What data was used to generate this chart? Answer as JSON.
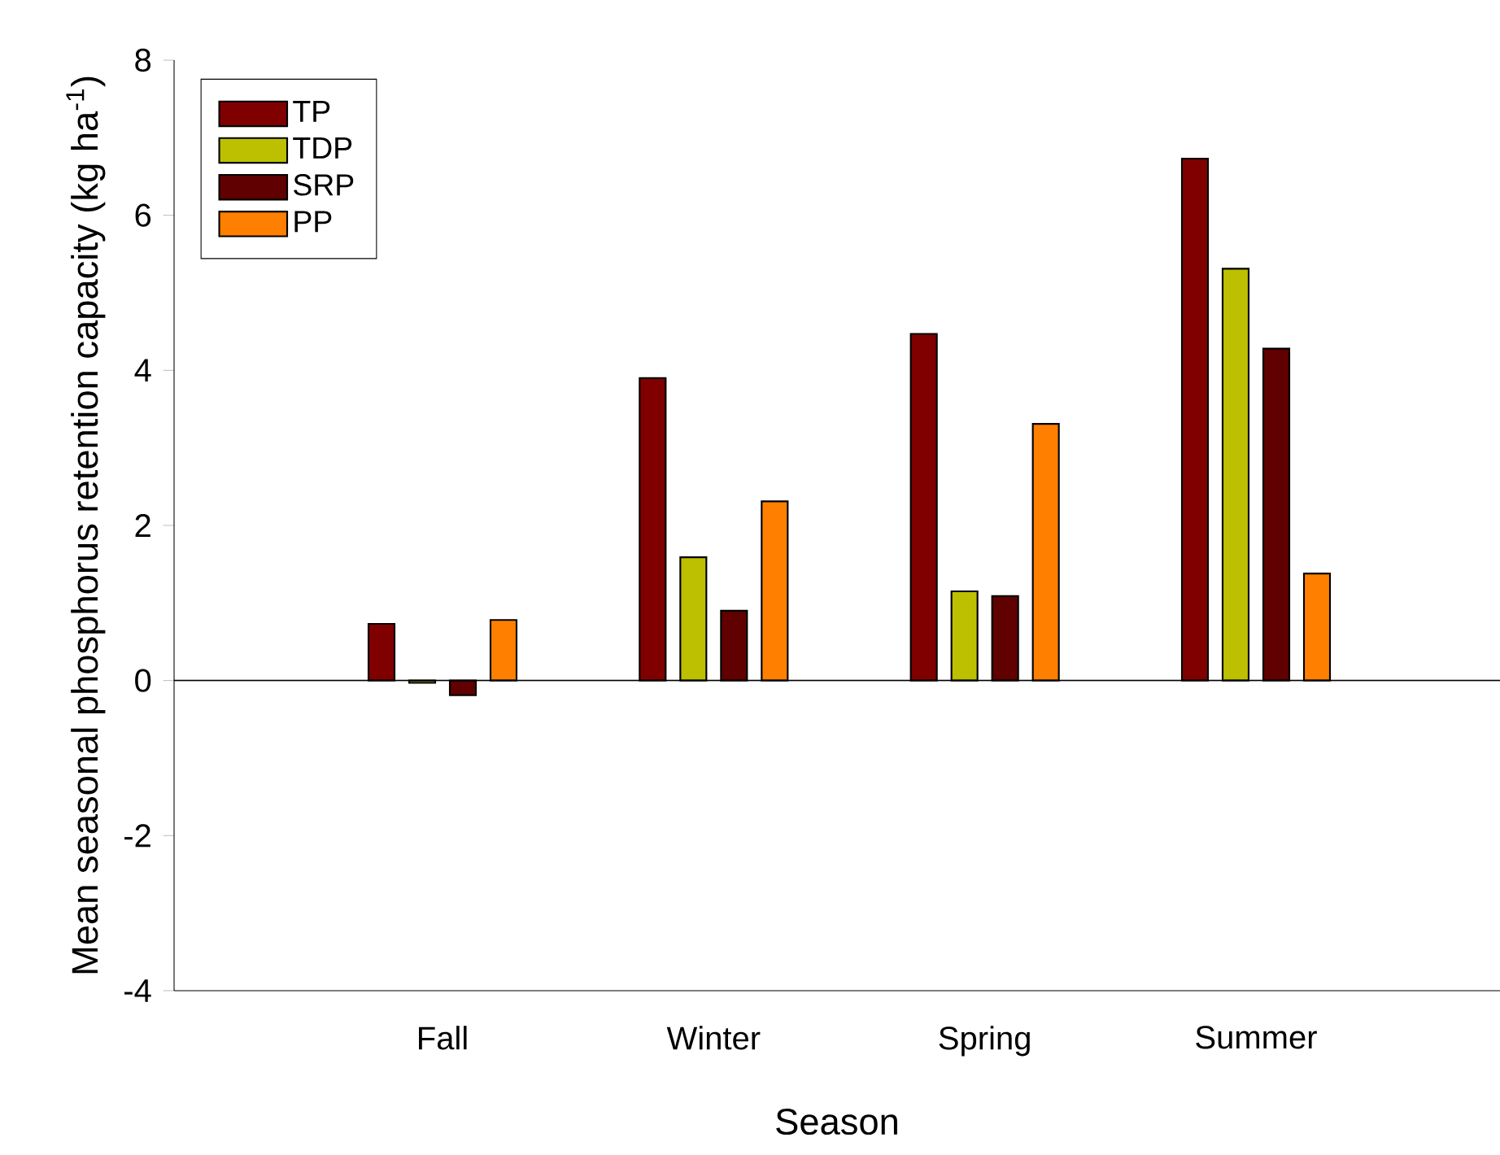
{
  "chart_data": {
    "type": "bar",
    "xlabel": "Season",
    "ylabel": "Mean seasonal phosphorus retention capacity (kg ha$^{-1}$)",
    "categories": [
      "Fall",
      "Winter",
      "Spring",
      "Summer"
    ],
    "series": [
      {
        "name": "TP",
        "color": "#800000",
        "values": [
          0.73,
          3.9,
          4.47,
          6.73
        ]
      },
      {
        "name": "TDP",
        "color": "#bcc000",
        "values": [
          -0.03,
          1.59,
          1.15,
          5.31
        ]
      },
      {
        "name": "SRP",
        "color": "#600000",
        "values": [
          -0.19,
          0.9,
          1.09,
          4.28
        ]
      },
      {
        "name": "PP",
        "color": "#ff8000",
        "values": [
          0.78,
          2.31,
          3.31,
          1.38
        ]
      }
    ],
    "ylim": [
      -4,
      8
    ],
    "yticks": [
      -4,
      -2,
      0,
      2,
      4,
      6,
      8
    ],
    "legend": "top left"
  }
}
